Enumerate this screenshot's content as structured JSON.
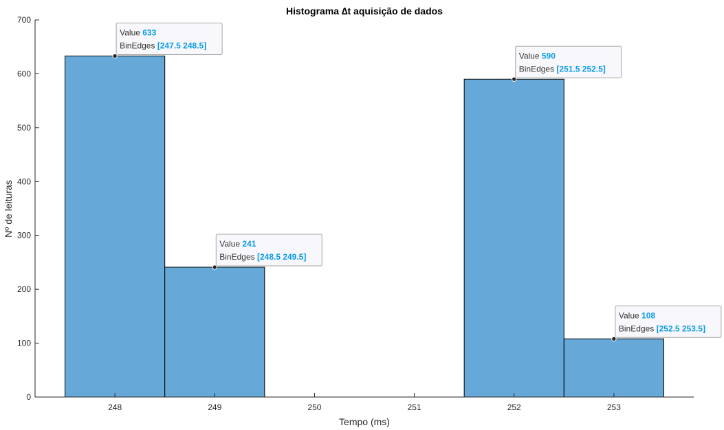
{
  "chart_data": {
    "type": "bar",
    "title": "Histograma ∆t aquisição de dados",
    "xlabel": "Tempo (ms)",
    "ylabel": "Nº de leituras",
    "bin_edges": [
      247.5,
      248.5,
      249.5,
      250.5,
      251.5,
      252.5,
      253.5
    ],
    "values": [
      633,
      241,
      0,
      0,
      590,
      108
    ],
    "xlim": [
      247.2,
      253.8
    ],
    "ylim": [
      0,
      700
    ],
    "xticks": [
      248,
      249,
      250,
      251,
      252,
      253
    ],
    "yticks": [
      0,
      100,
      200,
      300,
      400,
      500,
      600,
      700
    ],
    "grid": false,
    "legend": "none",
    "bar_color": "#66a8d7",
    "edge_color": "#000000",
    "value_color": "#0a9ae6",
    "datatips": [
      {
        "value_label": "Value",
        "value": "633",
        "edges_label": "BinEdges",
        "edges": "[247.5 248.5]",
        "x": 248,
        "y": 633,
        "anchor": "right"
      },
      {
        "value_label": "Value",
        "value": "241",
        "edges_label": "BinEdges",
        "edges": "[248.5 249.5]",
        "x": 249,
        "y": 241,
        "anchor": "right"
      },
      {
        "value_label": "Value",
        "value": "590",
        "edges_label": "BinEdges",
        "edges": "[251.5 252.5]",
        "x": 252,
        "y": 590,
        "anchor": "right"
      },
      {
        "value_label": "Value",
        "value": "108",
        "edges_label": "BinEdges",
        "edges": "[252.5 253.5]",
        "x": 253,
        "y": 108,
        "anchor": "right"
      }
    ]
  }
}
